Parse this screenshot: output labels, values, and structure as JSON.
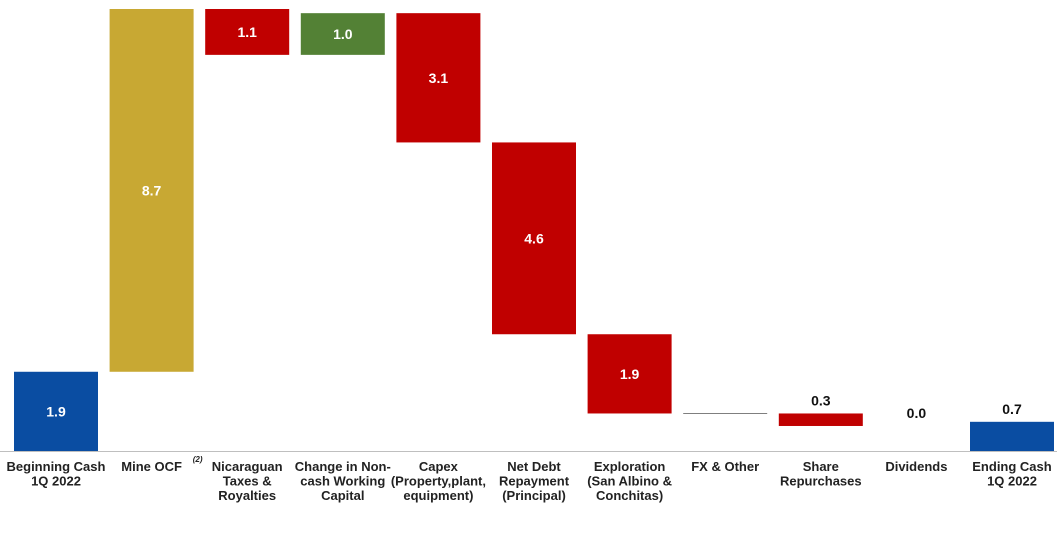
{
  "chart_data": {
    "type": "waterfall",
    "unit_hint": "",
    "colors": {
      "total": "#0A4DA2",
      "increase_primary": "#C8A833",
      "increase": "#538135",
      "decrease": "#C00000",
      "neutral": "#7F7F7F"
    },
    "steps": [
      {
        "lines": [
          "Beginning Cash",
          "1Q 2022"
        ],
        "value": 1.9,
        "label": "1.9",
        "kind": "total",
        "color": "#0A4DA2"
      },
      {
        "lines": [
          "Mine OCF"
        ],
        "sup": "(2)",
        "value": 8.7,
        "label": "8.7",
        "kind": "increase",
        "color": "#C8A833"
      },
      {
        "lines": [
          "Nicaraguan",
          "Taxes &",
          "Royalties"
        ],
        "value": -1.1,
        "label": "1.1",
        "kind": "decrease",
        "color": "#C00000"
      },
      {
        "lines": [
          "Change in Non-",
          "cash Working",
          "Capital"
        ],
        "value": 1.0,
        "label": "1.0",
        "kind": "increase",
        "color": "#538135"
      },
      {
        "lines": [
          "Capex",
          "(Property,plant,",
          "equipment)"
        ],
        "value": -3.1,
        "label": "3.1",
        "kind": "decrease",
        "color": "#C00000"
      },
      {
        "lines": [
          "Net Debt",
          "Repayment",
          "(Principal)"
        ],
        "value": -4.6,
        "label": "4.6",
        "kind": "decrease",
        "color": "#C00000"
      },
      {
        "lines": [
          "Exploration",
          "(San Albino &",
          "Conchitas)"
        ],
        "value": -1.9,
        "label": "1.9",
        "kind": "decrease",
        "color": "#C00000"
      },
      {
        "lines": [
          "FX & Other"
        ],
        "value": 0.0,
        "label": "",
        "kind": "neutral",
        "color": "#7F7F7F"
      },
      {
        "lines": [
          "Share",
          "Repurchases"
        ],
        "value": -0.3,
        "label": "0.3",
        "kind": "decrease",
        "color": "#C00000"
      },
      {
        "lines": [
          "Dividends"
        ],
        "value": 0.0,
        "label": "0.0",
        "kind": "neutral",
        "color": "#7F7F7F"
      },
      {
        "lines": [
          "Ending Cash",
          "1Q 2022"
        ],
        "value": 0.7,
        "label": "0.7",
        "kind": "total",
        "color": "#0A4DA2"
      }
    ],
    "ylim": [
      0,
      10.6
    ]
  }
}
